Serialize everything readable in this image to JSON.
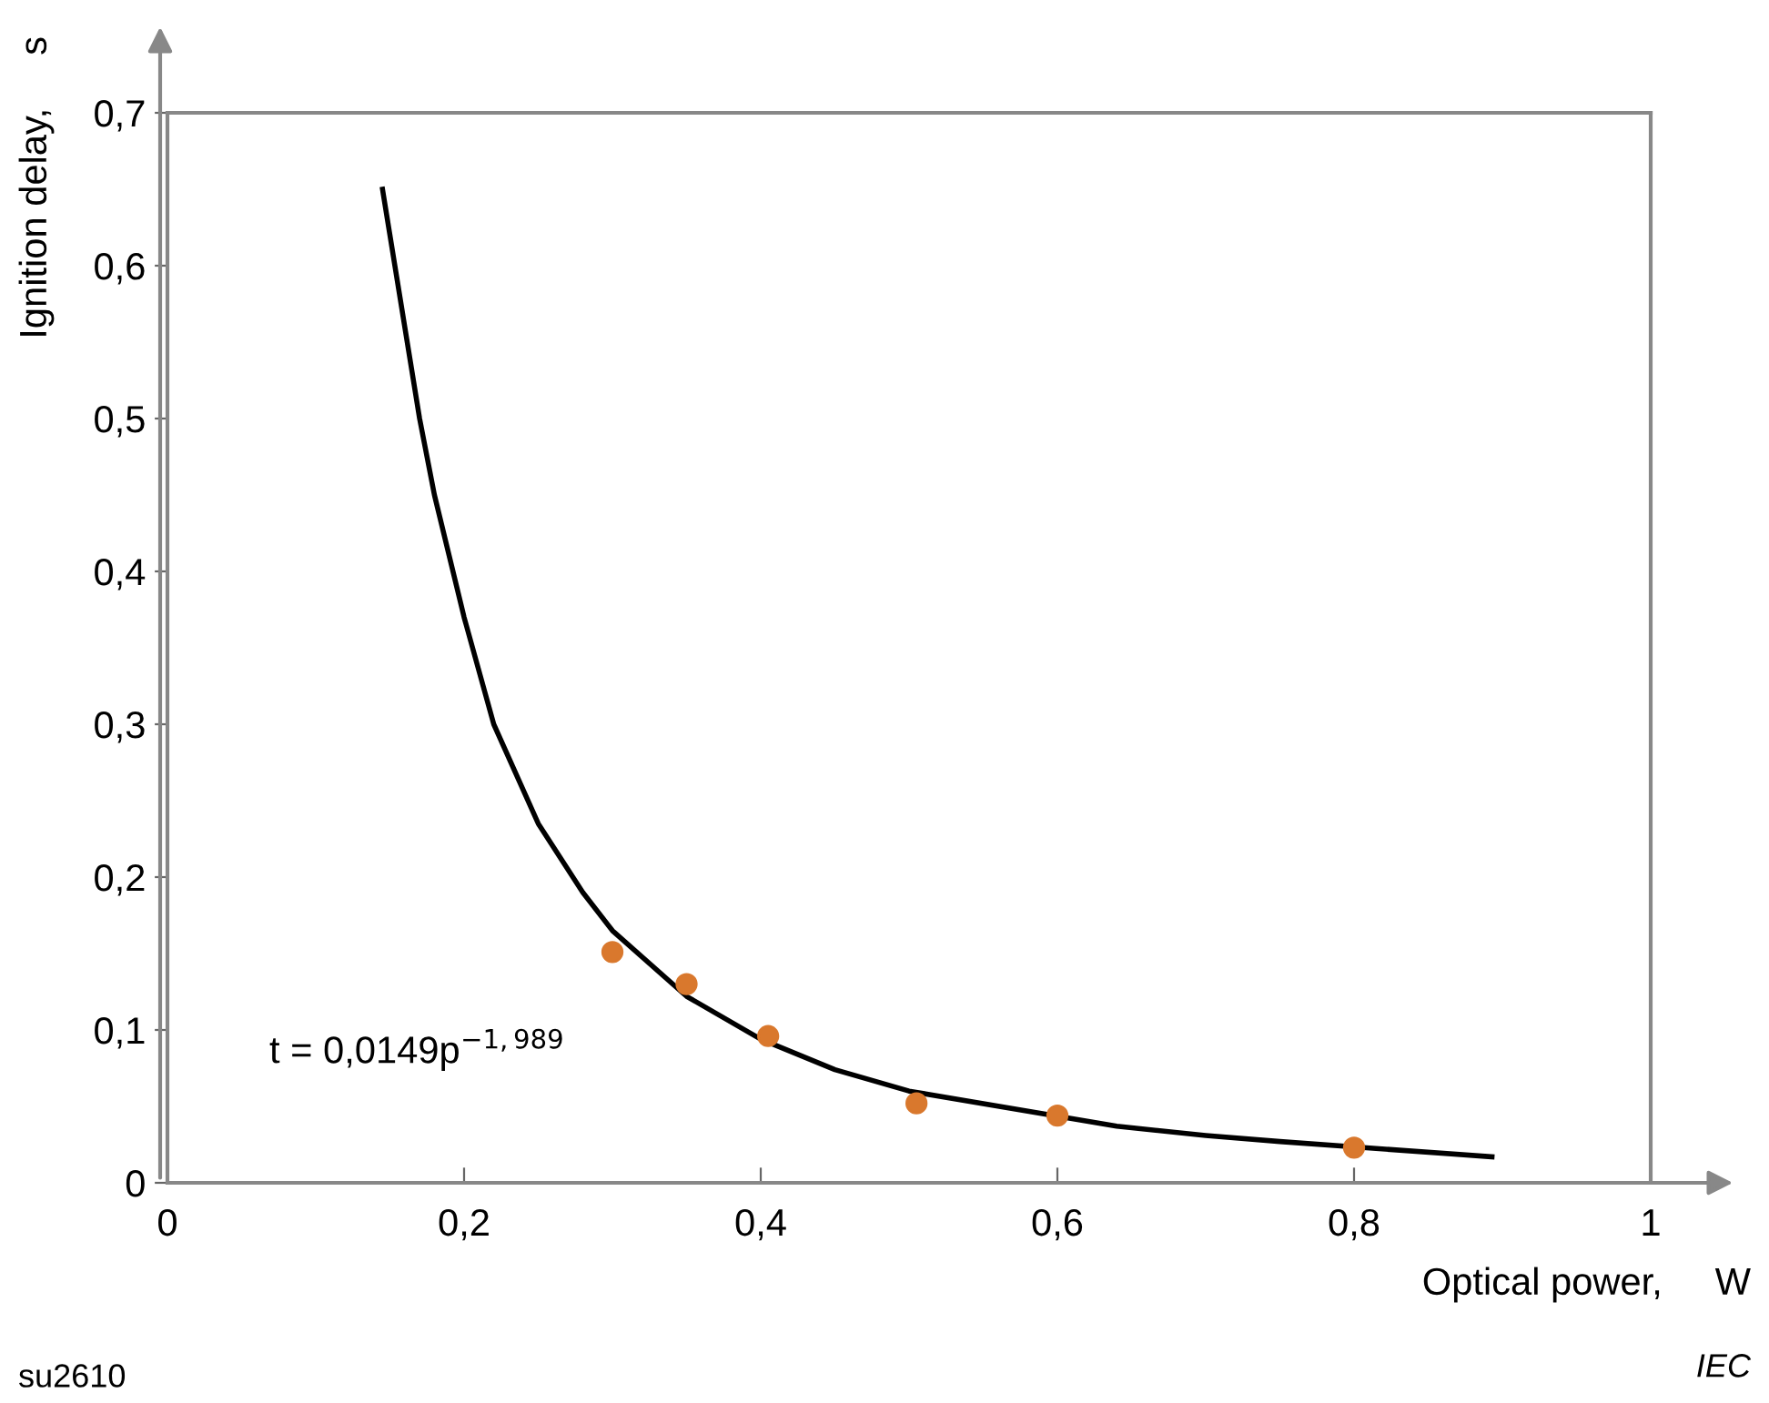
{
  "chart_data": {
    "type": "scatter",
    "xlabel": "Optical power,     W",
    "ylabel": "Ignition delay,     s",
    "xlim": [
      0,
      1
    ],
    "ylim": [
      0,
      0.7
    ],
    "xticks": [
      0,
      {
        "value": 0.2,
        "label": "0,2"
      },
      {
        "value": 0.4,
        "label": "0,4"
      },
      {
        "value": 0.6,
        "label": "0,6"
      },
      {
        "value": 0.8,
        "label": "0,8"
      },
      1
    ],
    "yticks": [
      0,
      {
        "value": 0.1,
        "label": "0,1"
      },
      {
        "value": 0.2,
        "label": "0,2"
      },
      {
        "value": 0.3,
        "label": "0,3"
      },
      {
        "value": 0.4,
        "label": "0,4"
      },
      {
        "value": 0.5,
        "label": "0,5"
      },
      {
        "value": 0.6,
        "label": "0,6"
      },
      {
        "value": 0.7,
        "label": "0,7"
      }
    ],
    "grid": false,
    "legend": false,
    "series": [
      {
        "color": "#d9782d",
        "marker": "circle",
        "x": [
          0.3,
          0.35,
          0.405,
          0.505,
          0.6,
          0.8
        ],
        "values": [
          0.151,
          0.13,
          0.096,
          0.052,
          0.044,
          0.023
        ]
      },
      {
        "type": "line",
        "color": "#000000",
        "marker": "none",
        "line_style": "solid",
        "x": [
          0.145,
          0.16,
          0.17,
          0.18,
          0.2,
          0.22,
          0.25,
          0.28,
          0.3,
          0.35,
          0.4,
          0.45,
          0.5,
          0.64,
          0.7,
          0.75,
          0.893
        ],
        "values": [
          0.65,
          0.56,
          0.5,
          0.45,
          0.37,
          0.3,
          0.235,
          0.19,
          0.165,
          0.122,
          0.094,
          0.074,
          0.06,
          0.037,
          0.031,
          0.027,
          0.017
        ]
      }
    ],
    "annotations": [
      "t = 0,0149p$^{−1,989}$",
      "su2610",
      "IEC"
    ]
  }
}
